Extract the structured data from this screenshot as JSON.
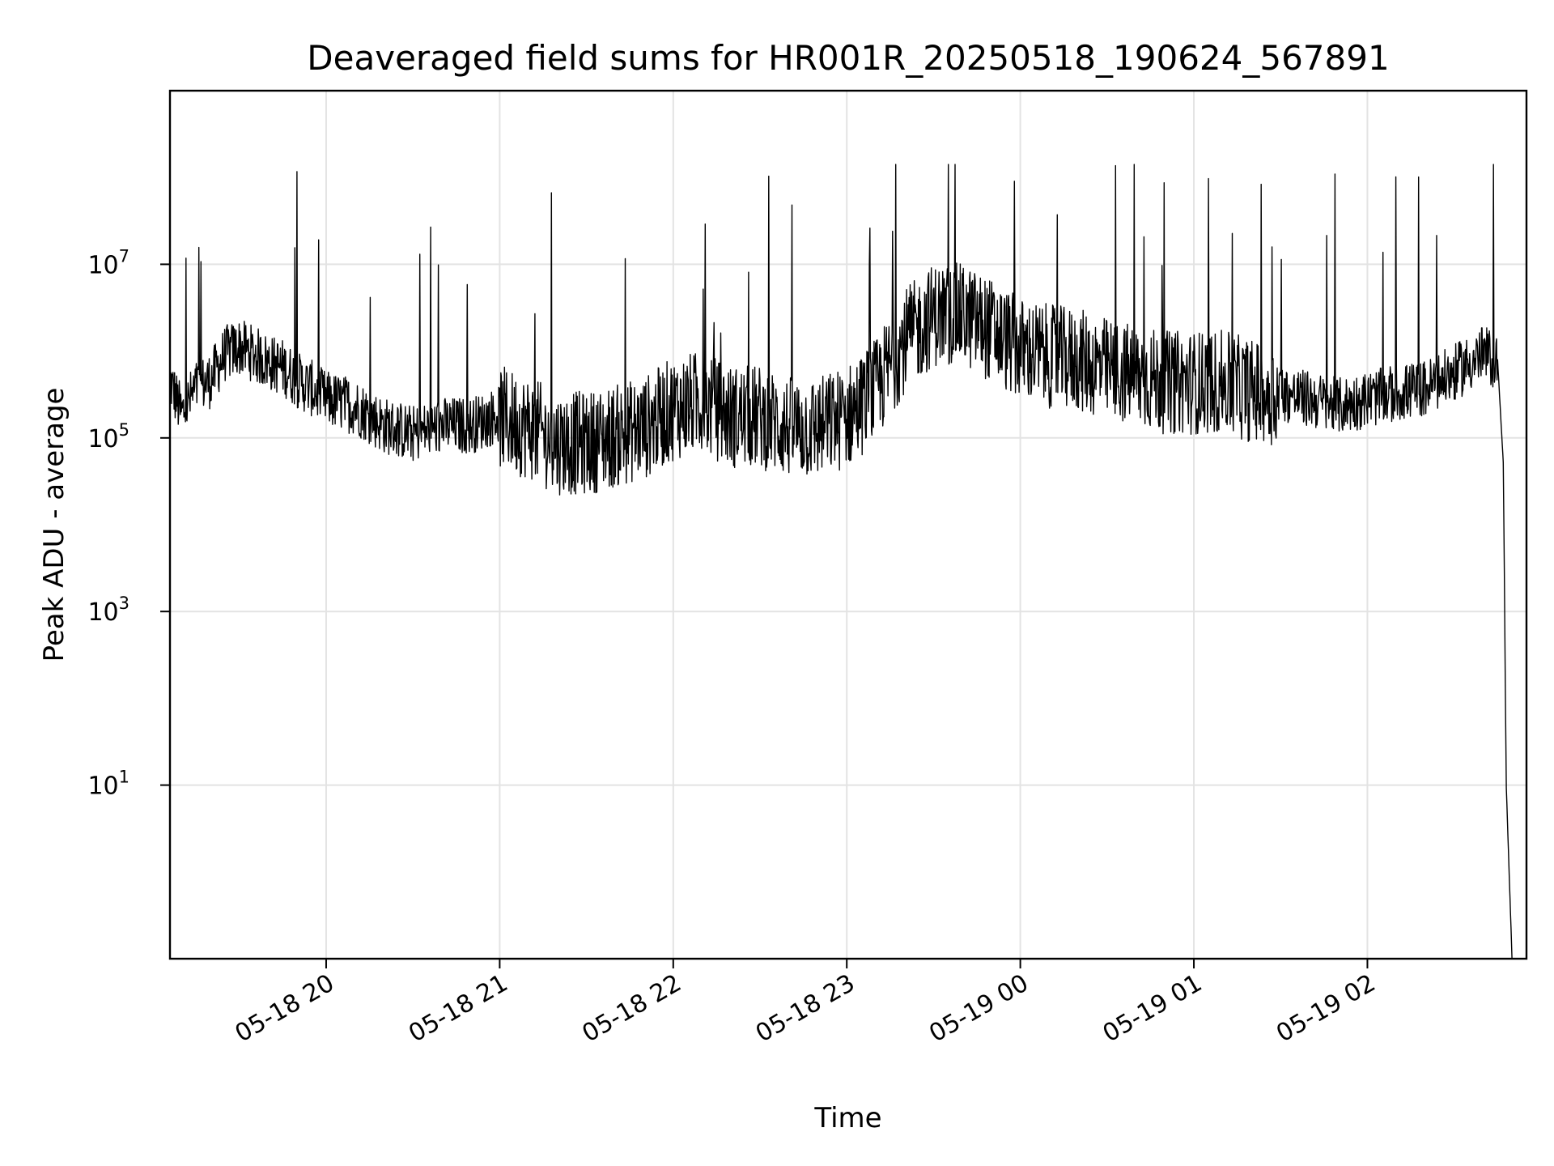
{
  "chart_data": {
    "type": "line",
    "title": "Deaveraged field sums for HR001R_20250518_190624_567891",
    "xlabel": "Time",
    "ylabel": "Peak ADU - average",
    "yscale": "log",
    "xlim": [
      "2025-05-18 19:06",
      "2025-05-19 02:55"
    ],
    "ylim": [
      0.1,
      1000000000
    ],
    "grid": true,
    "legend": "none",
    "line_color": "#000000",
    "x_ticks": [
      {
        "t": "2025-05-18 20:00",
        "label": "05-18 20"
      },
      {
        "t": "2025-05-18 21:00",
        "label": "05-18 21"
      },
      {
        "t": "2025-05-18 22:00",
        "label": "05-18 22"
      },
      {
        "t": "2025-05-18 23:00",
        "label": "05-18 23"
      },
      {
        "t": "2025-05-19 00:00",
        "label": "05-19 00"
      },
      {
        "t": "2025-05-19 01:00",
        "label": "05-19 01"
      },
      {
        "t": "2025-05-19 02:00",
        "label": "05-19 02"
      }
    ],
    "y_ticks": [
      {
        "v": 10,
        "base": "10",
        "exp": "1"
      },
      {
        "v": 1000,
        "base": "10",
        "exp": "3"
      },
      {
        "v": 100000,
        "base": "10",
        "exp": "5"
      },
      {
        "v": 10000000,
        "base": "10",
        "exp": "7"
      }
    ],
    "series": [
      {
        "x": [
          "2025-05-18 19:06",
          "2025-05-18 19:10",
          "2025-05-18 19:15",
          "2025-05-18 19:20",
          "2025-05-18 19:25",
          "2025-05-18 19:30",
          "2025-05-18 19:35",
          "2025-05-18 19:40",
          "2025-05-18 19:45",
          "2025-05-18 19:50",
          "2025-05-18 19:55",
          "2025-05-18 20:00",
          "2025-05-18 20:10",
          "2025-05-18 20:20",
          "2025-05-18 20:30",
          "2025-05-18 20:40",
          "2025-05-18 20:50",
          "2025-05-18 21:00",
          "2025-05-18 21:10",
          "2025-05-18 21:20",
          "2025-05-18 21:30",
          "2025-05-18 21:40",
          "2025-05-18 21:50",
          "2025-05-18 22:00",
          "2025-05-18 22:10",
          "2025-05-18 22:20",
          "2025-05-18 22:30",
          "2025-05-18 22:40",
          "2025-05-18 22:50",
          "2025-05-18 23:00",
          "2025-05-18 23:10",
          "2025-05-18 23:20",
          "2025-05-18 23:30",
          "2025-05-18 23:40",
          "2025-05-18 23:50",
          "2025-05-19 00:00",
          "2025-05-19 00:10",
          "2025-05-19 00:20",
          "2025-05-19 00:30",
          "2025-05-19 00:40",
          "2025-05-19 00:50",
          "2025-05-19 01:00",
          "2025-05-19 01:10",
          "2025-05-19 01:20",
          "2025-05-19 01:30",
          "2025-05-19 01:40",
          "2025-05-19 01:50",
          "2025-05-19 02:00",
          "2025-05-19 02:10",
          "2025-05-19 02:20",
          "2025-05-19 02:30",
          "2025-05-19 02:40",
          "2025-05-19 02:45",
          "2025-05-19 02:47",
          "2025-05-19 02:48",
          "2025-05-19 02:49",
          "2025-05-19 02:50"
        ],
        "y": [
          500000,
          200000,
          400000,
          500000,
          1000000,
          1200000,
          1000000,
          800000,
          700000,
          500000,
          400000,
          300000,
          250000,
          150000,
          120000,
          150000,
          150000,
          200000,
          150000,
          100000,
          100000,
          120000,
          150000,
          250000,
          300000,
          200000,
          200000,
          150000,
          150000,
          200000,
          400000,
          1500000,
          3000000,
          3000000,
          2000000,
          1200000,
          1000000,
          900000,
          700000,
          600000,
          500000,
          500000,
          500000,
          400000,
          350000,
          300000,
          250000,
          300000,
          350000,
          400000,
          600000,
          1000000,
          800000,
          50000,
          10,
          1,
          0.1
        ]
      }
    ]
  }
}
